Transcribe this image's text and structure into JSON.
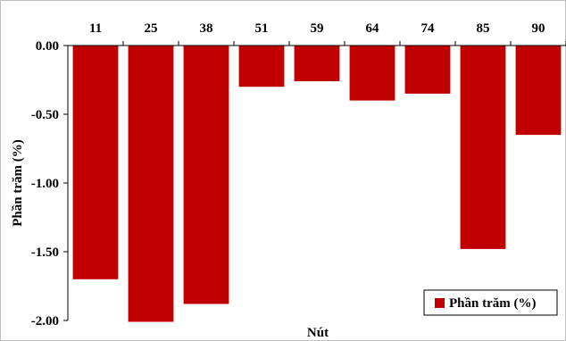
{
  "chart_data": {
    "type": "bar",
    "categories": [
      "11",
      "25",
      "38",
      "51",
      "59",
      "64",
      "74",
      "85",
      "90"
    ],
    "series": [
      {
        "name": "Phần trăm (%)",
        "values": [
          -1.7,
          -2.01,
          -1.88,
          -0.3,
          -0.26,
          -0.4,
          -0.35,
          -1.48,
          -0.65
        ],
        "color": "#c00000"
      }
    ],
    "xlabel": "Nút",
    "ylabel": "Phần trăm (%)",
    "ylim": [
      -2.0,
      0.0
    ],
    "yticks": [
      "0.00",
      "-0.50",
      "-1.00",
      "-1.50",
      "-2.00"
    ],
    "ytick_values": [
      0.0,
      -0.5,
      -1.0,
      -1.5,
      -2.0
    ],
    "x_axis_position": "top",
    "grid": false,
    "legend": {
      "position": "bottom-right",
      "label": "Phần trăm (%)"
    }
  }
}
